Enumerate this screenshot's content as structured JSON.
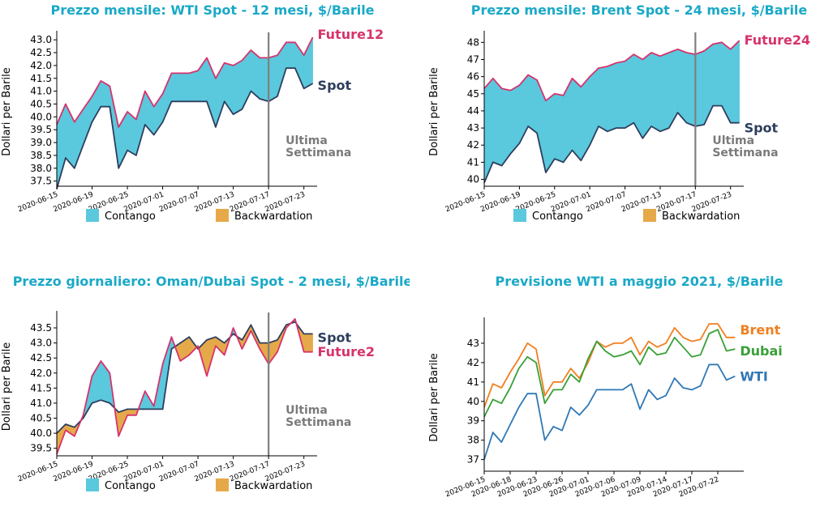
{
  "colors": {
    "title": "#1aa9c7",
    "contango": "#5ac8dd",
    "backwardation": "#e6a94a",
    "spot": "#2d3e5e",
    "future": "#d6336c",
    "annotation": "#7a7a7a",
    "wti": "#2f78b5",
    "brent": "#f07f20",
    "dubai": "#39a038"
  },
  "legend": {
    "contango": "Contango",
    "backwardation": "Backwardation"
  },
  "chart_data": [
    {
      "type": "area",
      "title": "Prezzo mensile: WTI Spot - 12 mesi, $/Barile",
      "ylabel": "Dollari per Barile",
      "ylim": [
        37.3,
        43.1
      ],
      "yticks": [
        37.5,
        38.0,
        38.5,
        39.0,
        39.5,
        40.0,
        40.5,
        41.0,
        41.5,
        42.0,
        42.5,
        43.0
      ],
      "ytick_format": 1,
      "xlim": [
        0,
        29.5
      ],
      "xtick_labels": [
        "2020-06-15",
        "2020-06-19",
        "2020-06-25",
        "2020-07-01",
        "2020-07-07",
        "2020-07-13",
        "2020-07-17",
        "2020-07-23"
      ],
      "xtick_pos": [
        0,
        4,
        8,
        12,
        16,
        20,
        24,
        28
      ],
      "vline_x": 24,
      "annotation": "Ultima Settimana",
      "legend": true,
      "series": [
        {
          "name": "Spot",
          "values": [
            37.2,
            38.4,
            38.0,
            38.9,
            39.8,
            40.4,
            40.4,
            38.0,
            38.7,
            38.5,
            39.7,
            39.3,
            39.8,
            40.6,
            40.6,
            40.6,
            40.6,
            40.6,
            39.6,
            40.6,
            40.1,
            40.3,
            41.0,
            40.7,
            40.6,
            40.8,
            41.9,
            41.9,
            41.1,
            41.3
          ]
        },
        {
          "name": "Future12",
          "values": [
            39.7,
            40.5,
            39.8,
            40.3,
            40.8,
            41.4,
            41.2,
            39.6,
            40.2,
            39.9,
            41.0,
            40.4,
            40.9,
            41.7,
            41.7,
            41.7,
            41.8,
            42.3,
            41.5,
            42.1,
            42.0,
            42.2,
            42.6,
            42.3,
            42.3,
            42.4,
            42.9,
            42.9,
            42.4,
            43.1
          ]
        }
      ]
    },
    {
      "type": "area",
      "title": "Prezzo mensile: Brent Spot - 24 mesi, $/Barile",
      "ylabel": "Dollari per Barile",
      "ylim": [
        39.6,
        48.3
      ],
      "yticks": [
        40,
        41,
        42,
        43,
        44,
        45,
        46,
        47,
        48
      ],
      "ytick_format": 0,
      "xlim": [
        0,
        29.5
      ],
      "xtick_labels": [
        "2020-06-15",
        "2020-06-19",
        "2020-06-25",
        "2020-07-01",
        "2020-07-07",
        "2020-07-13",
        "2020-07-17",
        "2020-07-23"
      ],
      "xtick_pos": [
        0,
        4,
        8,
        12,
        16,
        20,
        24,
        28
      ],
      "vline_x": 24,
      "annotation": "Ultima Settimana",
      "legend": true,
      "series": [
        {
          "name": "Spot",
          "values": [
            39.8,
            41.0,
            40.8,
            41.5,
            42.1,
            43.1,
            42.7,
            40.4,
            41.2,
            41.0,
            41.7,
            41.1,
            42.0,
            43.1,
            42.8,
            43.0,
            43.0,
            43.3,
            42.4,
            43.1,
            42.8,
            43.0,
            43.9,
            43.3,
            43.1,
            43.2,
            44.3,
            44.3,
            43.3,
            43.3
          ]
        },
        {
          "name": "Future24",
          "values": [
            45.3,
            45.9,
            45.3,
            45.2,
            45.5,
            46.1,
            45.8,
            44.6,
            45.0,
            44.9,
            45.9,
            45.4,
            46.0,
            46.5,
            46.6,
            46.8,
            46.9,
            47.3,
            47.0,
            47.4,
            47.2,
            47.4,
            47.6,
            47.4,
            47.3,
            47.5,
            47.9,
            48.0,
            47.6,
            48.1
          ]
        }
      ]
    },
    {
      "type": "area",
      "title": "Prezzo giornaliero: Oman/Dubai Spot - 2 mesi, $/Barile",
      "ylabel": "Dollari per Barile",
      "ylim": [
        39.25,
        43.85
      ],
      "yticks": [
        39.5,
        40.0,
        40.5,
        41.0,
        41.5,
        42.0,
        42.5,
        43.0,
        43.5
      ],
      "ytick_format": 1,
      "xlim": [
        0,
        29.5
      ],
      "xtick_labels": [
        "2020-06-15",
        "2020-06-19",
        "2020-06-25",
        "2020-07-01",
        "2020-07-07",
        "2020-07-13",
        "2020-07-17",
        "2020-07-23"
      ],
      "xtick_pos": [
        0,
        4,
        8,
        12,
        16,
        20,
        24,
        28
      ],
      "vline_x": 24,
      "annotation": "Ultima Settimana",
      "legend": true,
      "series": [
        {
          "name": "Spot",
          "values": [
            40.0,
            40.3,
            40.2,
            40.5,
            41.0,
            41.1,
            41.0,
            40.7,
            40.8,
            40.8,
            40.8,
            40.8,
            40.8,
            42.8,
            43.0,
            43.2,
            42.8,
            43.1,
            43.2,
            43.0,
            43.3,
            43.1,
            43.6,
            43.0,
            43.0,
            43.1,
            43.6,
            43.7,
            43.3,
            43.3
          ]
        },
        {
          "name": "Future2",
          "values": [
            39.3,
            40.1,
            39.9,
            40.6,
            41.9,
            42.4,
            42.0,
            39.9,
            40.6,
            40.6,
            41.4,
            40.9,
            42.3,
            43.2,
            42.4,
            42.6,
            42.9,
            41.9,
            42.9,
            42.6,
            43.5,
            42.8,
            43.4,
            42.8,
            42.3,
            42.7,
            43.5,
            43.8,
            42.7,
            42.7
          ]
        }
      ]
    },
    {
      "type": "line",
      "title": "Previsione WTI a maggio 2021, $/Barile",
      "ylabel": "Dollari per Barile",
      "ylim": [
        36.4,
        44.0
      ],
      "yticks": [
        37,
        38,
        39,
        40,
        41,
        42,
        43
      ],
      "ytick_format": 0,
      "xlim": [
        0,
        30
      ],
      "xtick_labels": [
        "2020-06-15",
        "2020-06-18",
        "2020-06-23",
        "2020-06-26",
        "2020-07-01",
        "2020-07-06",
        "2020-07-09",
        "2020-07-14",
        "2020-07-17",
        "2020-07-22"
      ],
      "xtick_pos": [
        0,
        3,
        6,
        9,
        12,
        15,
        18,
        21,
        24,
        27
      ],
      "vline_x": null,
      "annotation": "",
      "legend": false,
      "series": [
        {
          "name": "WTI",
          "values": [
            37.0,
            38.4,
            37.9,
            38.8,
            39.7,
            40.4,
            40.4,
            38.0,
            38.7,
            38.5,
            39.7,
            39.3,
            39.8,
            40.6,
            40.6,
            40.6,
            40.6,
            40.9,
            39.6,
            40.6,
            40.1,
            40.3,
            41.2,
            40.7,
            40.6,
            40.8,
            41.9,
            41.9,
            41.1,
            41.3
          ]
        },
        {
          "name": "Brent",
          "values": [
            39.7,
            40.9,
            40.7,
            41.5,
            42.2,
            43.0,
            42.7,
            40.3,
            41.0,
            41.0,
            41.7,
            41.2,
            42.0,
            43.1,
            42.8,
            43.0,
            43.0,
            43.3,
            42.4,
            43.1,
            42.8,
            43.0,
            43.8,
            43.3,
            43.1,
            43.2,
            44.0,
            44.0,
            43.3,
            43.3
          ]
        },
        {
          "name": "Dubai",
          "values": [
            39.2,
            40.1,
            39.9,
            40.7,
            41.7,
            42.3,
            42.0,
            39.9,
            40.6,
            40.6,
            41.4,
            41.0,
            42.2,
            43.1,
            42.6,
            42.3,
            42.4,
            42.6,
            41.9,
            42.8,
            42.4,
            42.5,
            43.3,
            42.8,
            42.3,
            42.4,
            43.5,
            43.7,
            42.6,
            42.7
          ]
        }
      ]
    }
  ]
}
